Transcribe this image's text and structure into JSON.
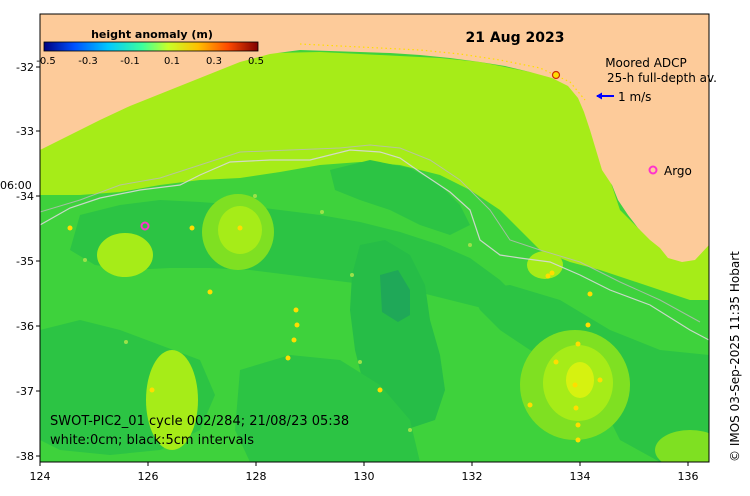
{
  "date": "21 Aug 2023",
  "colorbar": {
    "title": "height anomaly (m)",
    "ticks": [
      "-0.5",
      "-0.3",
      "-0.1",
      "0.1",
      "0.3",
      "0.5"
    ],
    "colors": [
      "#00007f",
      "#0050ff",
      "#00c8ff",
      "#3cff9c",
      "#c8ff28",
      "#ffc000",
      "#ff4a00",
      "#7f0000"
    ]
  },
  "legend": {
    "adcp_title": "Moored ADCP",
    "adcp_subtitle": "25-h full-depth av.",
    "adcp_scale": "1 m/s",
    "argo_label": "Argo"
  },
  "axes": {
    "x_ticks": [
      "124",
      "126",
      "128",
      "130",
      "132",
      "134",
      "136"
    ],
    "y_ticks": [
      "-32",
      "-33",
      "-34",
      "-35",
      "-36",
      "-37",
      "-38"
    ],
    "time_label": "06:00"
  },
  "info": {
    "line1": "SWOT-PIC2_01 cycle 002/284; 21/08/23 05:38",
    "line2": "white:0cm; black:5cm intervals"
  },
  "credit": "© IMOS 03-Sep-2025 11:35 Hobart",
  "colors": {
    "land": "#fdcb9a",
    "ocean_mid": "#3ed23c",
    "ocean_high": "#a6ec18",
    "ocean_low": "#1fb84a",
    "argo": "#ff33cc",
    "adcp_arrow": "#0000ff"
  }
}
